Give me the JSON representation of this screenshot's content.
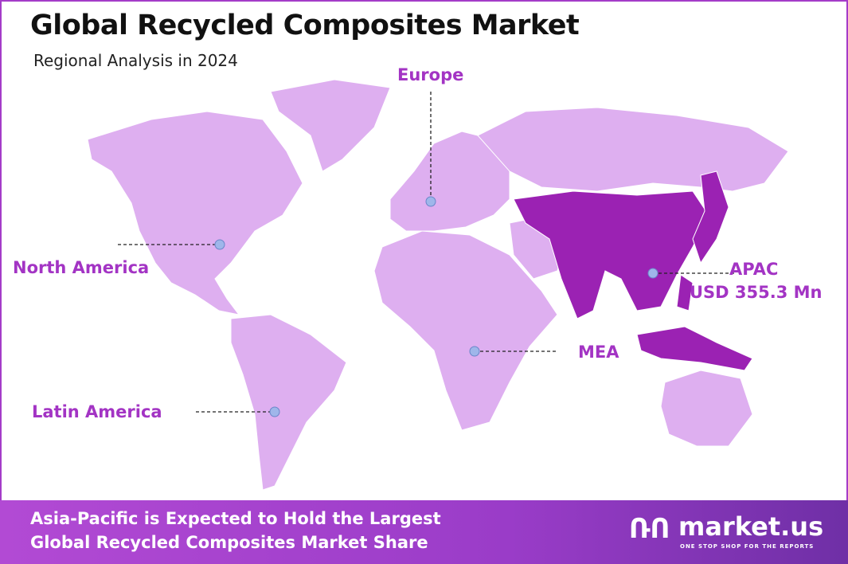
{
  "header": {
    "title": "Global Recycled Composites Market",
    "subtitle": "Regional Analysis in 2024"
  },
  "regions": [
    {
      "name": "North America"
    },
    {
      "name": "Europe"
    },
    {
      "name": "APAC",
      "value": "USD 355.3 Mn",
      "highlighted": true
    },
    {
      "name": "MEA"
    },
    {
      "name": "Latin America"
    }
  ],
  "colors": {
    "land": "#deaff0",
    "highlight": "#9b22b3",
    "label": "#a334c4",
    "marker": "#9fb6ea",
    "banner": "#a43cc8"
  },
  "banner": {
    "line1": "Asia-Pacific is Expected to Hold the Largest",
    "line2": "Global Recycled Composites Market Share"
  },
  "logo": {
    "name": "market.us",
    "tagline": "ONE STOP SHOP FOR THE REPORTS",
    "mark": "ՌՈ"
  }
}
